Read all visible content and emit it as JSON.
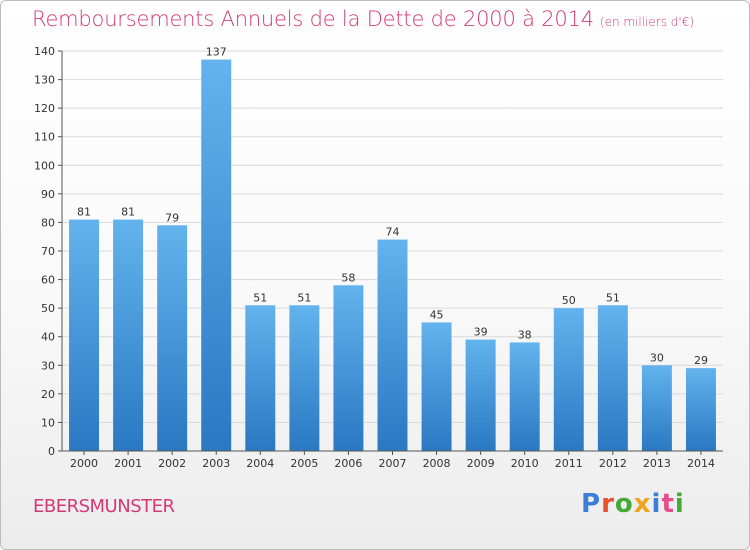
{
  "title": "Remboursements Annuels de la Dette de 2000 à 2014",
  "unit_note": "(en milliers d'€)",
  "city": "EBERSMUNSTER",
  "logo": {
    "text": "Proxiti",
    "letter_colors": [
      "#3a7fd5",
      "#e8532e",
      "#45a935",
      "#f0a31c",
      "#3a7fd5",
      "#e84b8a",
      "#45a935"
    ]
  },
  "colors": {
    "title": "#d33a74",
    "bar_top": "#63b3ee",
    "bar_bottom": "#2a78c2",
    "grid": "#d9d9d9",
    "axis_text": "#333333"
  },
  "chart_data": {
    "type": "bar",
    "title": "Remboursements Annuels de la Dette de 2000 à 2014",
    "subtitle": "(en milliers d'€)",
    "xlabel": "",
    "ylabel": "",
    "categories": [
      "2000",
      "2001",
      "2002",
      "2003",
      "2004",
      "2005",
      "2006",
      "2007",
      "2008",
      "2009",
      "2010",
      "2011",
      "2012",
      "2013",
      "2014"
    ],
    "values": [
      81,
      81,
      79,
      137,
      51,
      51,
      58,
      74,
      45,
      39,
      38,
      50,
      51,
      30,
      29
    ],
    "data_labels": [
      "81",
      "81",
      "79",
      "137",
      "51",
      "51",
      "58",
      "74",
      "45",
      "39",
      "38",
      "50",
      "51",
      "30",
      "29"
    ],
    "ylim": [
      0,
      140
    ],
    "yticks": [
      0,
      10,
      20,
      30,
      40,
      50,
      60,
      70,
      80,
      90,
      100,
      110,
      120,
      130,
      140
    ],
    "grid": true,
    "legend": "none"
  }
}
